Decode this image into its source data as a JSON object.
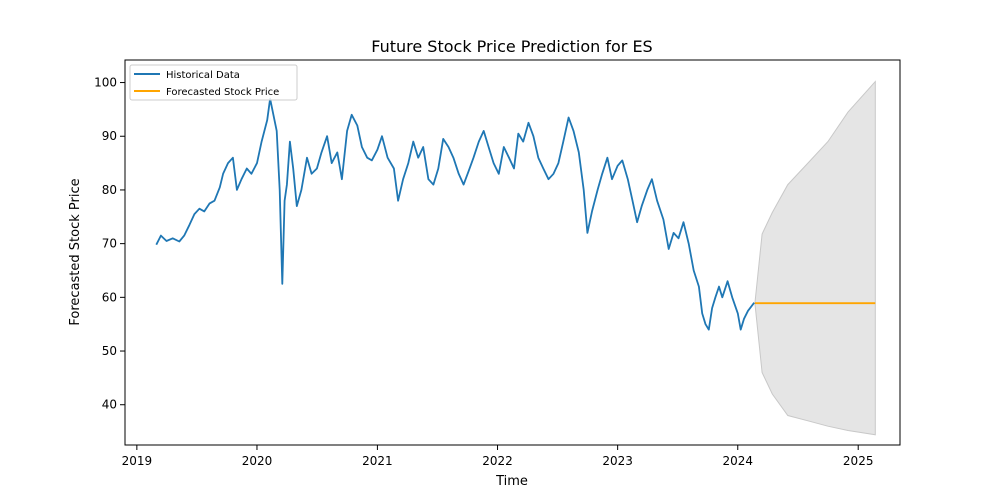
{
  "chart_data": {
    "type": "line",
    "title": "Future Stock Price Prediction for ES",
    "xlabel": "Time",
    "ylabel": "Forecasted Stock Price",
    "xlim": [
      "2018-11-26",
      "2025-05-08"
    ],
    "ylim": [
      32.5,
      104.2
    ],
    "x_ticks": [
      "2019",
      "2020",
      "2021",
      "2022",
      "2023",
      "2024",
      "2025"
    ],
    "y_ticks": [
      40,
      50,
      60,
      70,
      80,
      90,
      100
    ],
    "grid": false,
    "legend_position": "top-left",
    "colors": {
      "historical": "#1f77b4",
      "forecast": "#ffa500",
      "band": "#d3d3d3"
    },
    "series": [
      {
        "name": "Historical Data",
        "points": [
          [
            "2019-03-01",
            69.8
          ],
          [
            "2019-03-15",
            71.5
          ],
          [
            "2019-04-01",
            70.5
          ],
          [
            "2019-04-20",
            71.0
          ],
          [
            "2019-05-10",
            70.4
          ],
          [
            "2019-05-25",
            71.5
          ],
          [
            "2019-06-10",
            73.5
          ],
          [
            "2019-06-25",
            75.5
          ],
          [
            "2019-07-10",
            76.5
          ],
          [
            "2019-07-25",
            76.0
          ],
          [
            "2019-08-10",
            77.5
          ],
          [
            "2019-08-25",
            78.0
          ],
          [
            "2019-09-10",
            80.5
          ],
          [
            "2019-09-20",
            83.0
          ],
          [
            "2019-10-05",
            85.0
          ],
          [
            "2019-10-20",
            86.0
          ],
          [
            "2019-11-01",
            80.0
          ],
          [
            "2019-11-15",
            82.0
          ],
          [
            "2019-12-01",
            84.0
          ],
          [
            "2019-12-15",
            83.0
          ],
          [
            "2020-01-01",
            85.0
          ],
          [
            "2020-01-15",
            89.0
          ],
          [
            "2020-02-01",
            93.0
          ],
          [
            "2020-02-10",
            97.0
          ],
          [
            "2020-02-20",
            94.0
          ],
          [
            "2020-03-01",
            91.0
          ],
          [
            "2020-03-10",
            80.0
          ],
          [
            "2020-03-18",
            62.5
          ],
          [
            "2020-03-25",
            78.0
          ],
          [
            "2020-04-01",
            81.0
          ],
          [
            "2020-04-10",
            89.0
          ],
          [
            "2020-04-20",
            84.0
          ],
          [
            "2020-05-01",
            77.0
          ],
          [
            "2020-05-15",
            80.0
          ],
          [
            "2020-06-01",
            86.0
          ],
          [
            "2020-06-15",
            83.0
          ],
          [
            "2020-07-01",
            84.0
          ],
          [
            "2020-07-15",
            87.0
          ],
          [
            "2020-08-01",
            90.0
          ],
          [
            "2020-08-15",
            85.0
          ],
          [
            "2020-09-01",
            87.0
          ],
          [
            "2020-09-15",
            82.0
          ],
          [
            "2020-10-01",
            91.0
          ],
          [
            "2020-10-15",
            94.0
          ],
          [
            "2020-11-01",
            92.0
          ],
          [
            "2020-11-15",
            88.0
          ],
          [
            "2020-12-01",
            86.0
          ],
          [
            "2020-12-15",
            85.5
          ],
          [
            "2021-01-01",
            87.5
          ],
          [
            "2021-01-15",
            90.0
          ],
          [
            "2021-02-01",
            86.0
          ],
          [
            "2021-02-20",
            84.0
          ],
          [
            "2021-03-05",
            78.0
          ],
          [
            "2021-03-20",
            82.0
          ],
          [
            "2021-04-05",
            85.0
          ],
          [
            "2021-04-20",
            89.0
          ],
          [
            "2021-05-05",
            86.0
          ],
          [
            "2021-05-20",
            88.0
          ],
          [
            "2021-06-05",
            82.0
          ],
          [
            "2021-06-20",
            81.0
          ],
          [
            "2021-07-05",
            84.0
          ],
          [
            "2021-07-20",
            89.5
          ],
          [
            "2021-08-05",
            88.0
          ],
          [
            "2021-08-20",
            86.0
          ],
          [
            "2021-09-05",
            83.0
          ],
          [
            "2021-09-20",
            81.0
          ],
          [
            "2021-10-05",
            83.5
          ],
          [
            "2021-10-20",
            86.0
          ],
          [
            "2021-11-05",
            89.0
          ],
          [
            "2021-11-20",
            91.0
          ],
          [
            "2021-12-05",
            88.0
          ],
          [
            "2021-12-20",
            85.0
          ],
          [
            "2022-01-05",
            83.0
          ],
          [
            "2022-01-20",
            88.0
          ],
          [
            "2022-02-05",
            86.0
          ],
          [
            "2022-02-20",
            84.0
          ],
          [
            "2022-03-05",
            90.5
          ],
          [
            "2022-03-20",
            89.0
          ],
          [
            "2022-04-05",
            92.5
          ],
          [
            "2022-04-20",
            90.0
          ],
          [
            "2022-05-05",
            86.0
          ],
          [
            "2022-05-20",
            84.0
          ],
          [
            "2022-06-05",
            82.0
          ],
          [
            "2022-06-20",
            83.0
          ],
          [
            "2022-07-05",
            85.0
          ],
          [
            "2022-07-20",
            89.0
          ],
          [
            "2022-08-05",
            93.5
          ],
          [
            "2022-08-20",
            91.0
          ],
          [
            "2022-09-05",
            87.0
          ],
          [
            "2022-09-20",
            80.0
          ],
          [
            "2022-10-01",
            72.0
          ],
          [
            "2022-10-15",
            76.0
          ],
          [
            "2022-11-01",
            80.0
          ],
          [
            "2022-11-15",
            83.0
          ],
          [
            "2022-12-01",
            86.0
          ],
          [
            "2022-12-15",
            82.0
          ],
          [
            "2023-01-01",
            84.5
          ],
          [
            "2023-01-15",
            85.5
          ],
          [
            "2023-02-01",
            82.0
          ],
          [
            "2023-02-15",
            78.0
          ],
          [
            "2023-03-01",
            74.0
          ],
          [
            "2023-03-15",
            77.0
          ],
          [
            "2023-04-01",
            80.0
          ],
          [
            "2023-04-15",
            82.0
          ],
          [
            "2023-05-01",
            78.0
          ],
          [
            "2023-05-20",
            74.5
          ],
          [
            "2023-06-05",
            69.0
          ],
          [
            "2023-06-20",
            72.0
          ],
          [
            "2023-07-05",
            71.0
          ],
          [
            "2023-07-20",
            74.0
          ],
          [
            "2023-08-05",
            70.0
          ],
          [
            "2023-08-20",
            65.0
          ],
          [
            "2023-09-05",
            62.0
          ],
          [
            "2023-09-15",
            57.0
          ],
          [
            "2023-09-25",
            55.0
          ],
          [
            "2023-10-05",
            54.0
          ],
          [
            "2023-10-15",
            58.0
          ],
          [
            "2023-10-25",
            60.0
          ],
          [
            "2023-11-05",
            62.0
          ],
          [
            "2023-11-15",
            60.0
          ],
          [
            "2023-12-01",
            63.0
          ],
          [
            "2023-12-15",
            60.0
          ],
          [
            "2024-01-01",
            57.0
          ],
          [
            "2024-01-10",
            54.0
          ],
          [
            "2024-01-20",
            56.0
          ],
          [
            "2024-02-01",
            57.5
          ],
          [
            "2024-02-20",
            59.0
          ]
        ]
      },
      {
        "name": "Forecasted Stock Price",
        "points": [
          [
            "2024-02-22",
            58.9
          ],
          [
            "2025-02-22",
            58.9
          ]
        ]
      }
    ],
    "confidence_band": [
      [
        "2024-02-22",
        58.9,
        58.9
      ],
      [
        "2024-03-15",
        46.0,
        71.8
      ],
      [
        "2024-04-15",
        42.0,
        75.8
      ],
      [
        "2024-06-01",
        38.0,
        81.0
      ],
      [
        "2024-08-01",
        37.0,
        85.0
      ],
      [
        "2024-10-01",
        36.0,
        89.0
      ],
      [
        "2024-12-01",
        35.2,
        94.5
      ],
      [
        "2025-02-22",
        34.4,
        100.2
      ]
    ]
  }
}
